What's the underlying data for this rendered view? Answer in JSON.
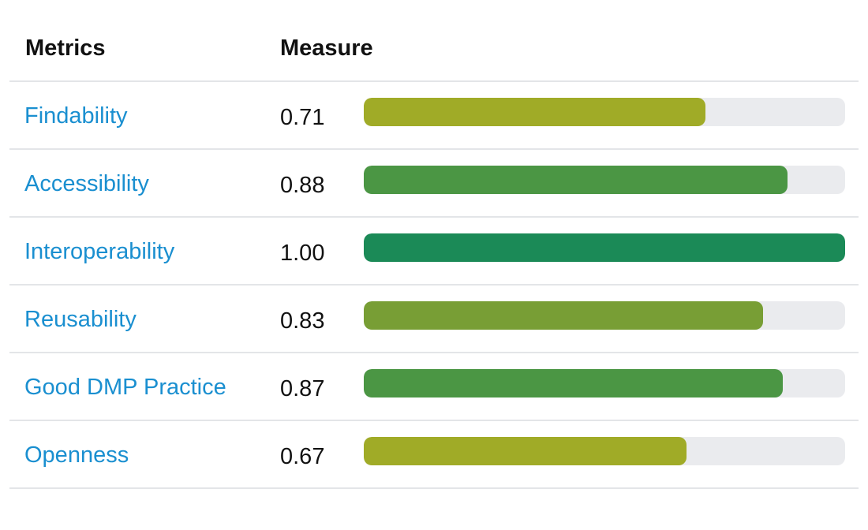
{
  "header": {
    "metrics_label": "Metrics",
    "measure_label": "Measure"
  },
  "rows": [
    {
      "name": "Findability",
      "value_text": "0.71",
      "value": 0.71,
      "color": "#a0ab27"
    },
    {
      "name": "Accessibility",
      "value_text": "0.88",
      "value": 0.88,
      "color": "#4b9644"
    },
    {
      "name": "Interoperability",
      "value_text": "1.00",
      "value": 1.0,
      "color": "#1b8a57"
    },
    {
      "name": "Reusability",
      "value_text": "0.83",
      "value": 0.83,
      "color": "#789e35"
    },
    {
      "name": "Good DMP Practice",
      "value_text": "0.87",
      "value": 0.87,
      "color": "#4b9644"
    },
    {
      "name": "Openness",
      "value_text": "0.67",
      "value": 0.67,
      "color": "#a0ab27"
    }
  ]
}
